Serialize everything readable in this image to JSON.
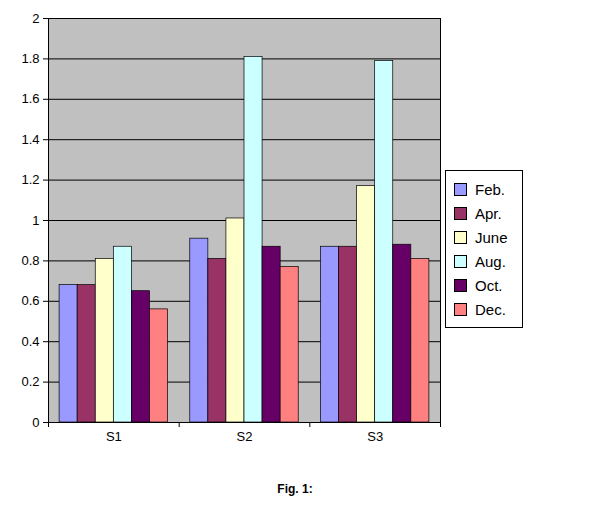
{
  "chart_data": {
    "type": "bar",
    "caption": "Fig. 1:",
    "categories": [
      "S1",
      "S2",
      "S3"
    ],
    "series": [
      {
        "name": "Feb.",
        "color": "#9999FF",
        "values": [
          0.68,
          0.91,
          0.87
        ]
      },
      {
        "name": "Apr.",
        "color": "#993366",
        "values": [
          0.68,
          0.81,
          0.87
        ]
      },
      {
        "name": "June",
        "color": "#FFFFCC",
        "values": [
          0.81,
          1.01,
          1.17
        ]
      },
      {
        "name": "Aug.",
        "color": "#CCFFFF",
        "values": [
          0.87,
          1.81,
          1.79
        ]
      },
      {
        "name": "Oct.",
        "color": "#660066",
        "values": [
          0.65,
          0.87,
          0.88
        ]
      },
      {
        "name": "Dec.",
        "color": "#FF8080",
        "values": [
          0.56,
          0.77,
          0.81
        ]
      }
    ],
    "ylim": [
      0,
      2
    ],
    "yticks": [
      0,
      0.2,
      0.4,
      0.6,
      0.8,
      1,
      1.2,
      1.4,
      1.6,
      1.8,
      2
    ],
    "grid": true,
    "legend": "right"
  }
}
